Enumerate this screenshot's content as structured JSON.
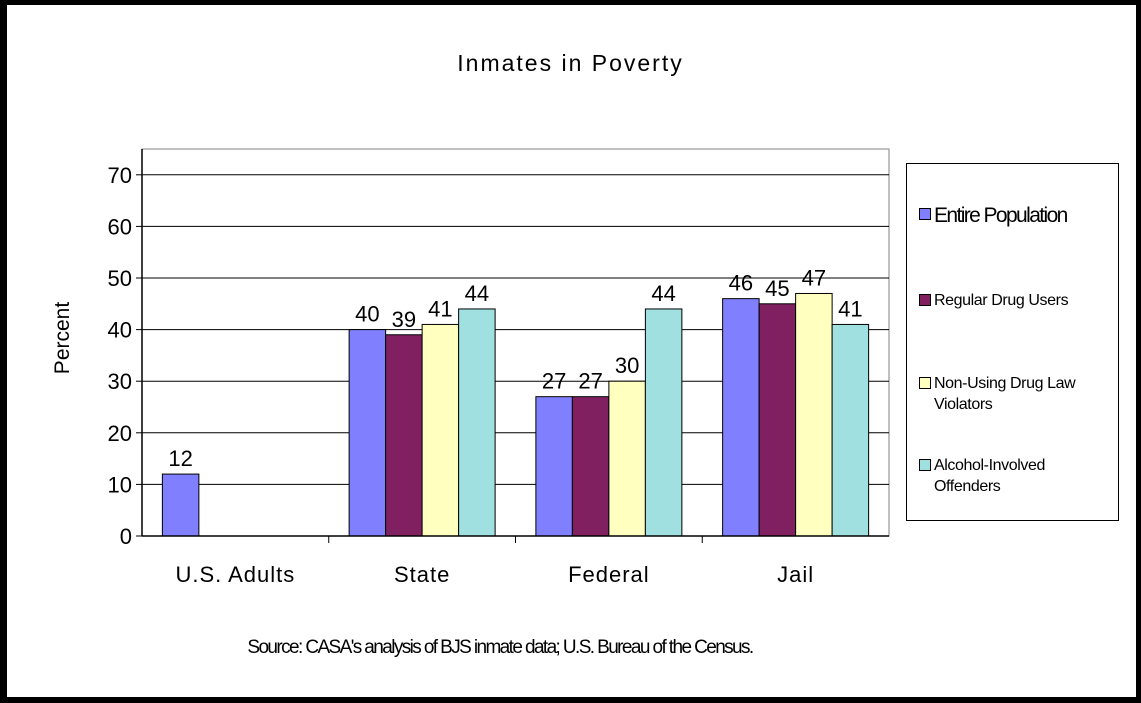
{
  "chart_data": {
    "type": "bar",
    "title": "Inmates in Poverty",
    "xlabel": "",
    "ylabel": "Percent",
    "ylim": [
      0,
      70
    ],
    "yticks": [
      "0",
      "10",
      "20",
      "30",
      "40",
      "50",
      "60",
      "70"
    ],
    "categories": [
      "U.S. Adults",
      "State",
      "Federal",
      "Jail"
    ],
    "series": [
      {
        "name": "Entire Population",
        "color": "#8080ff",
        "values": [
          12,
          40,
          27,
          46
        ]
      },
      {
        "name": "Regular Drug Users",
        "color": "#802060",
        "values": [
          null,
          39,
          27,
          45
        ]
      },
      {
        "name": "Non-Using Drug Law Violators",
        "color": "#ffffc0",
        "values": [
          null,
          41,
          30,
          47
        ]
      },
      {
        "name": "Alcohol-Involved Offenders",
        "color": "#a0e0e0",
        "values": [
          null,
          44,
          44,
          41
        ]
      }
    ],
    "legend_position": "right",
    "grid": true,
    "source": "Source: CASA's analysis of BJS inmate data; U.S. Bureau of the Census."
  }
}
